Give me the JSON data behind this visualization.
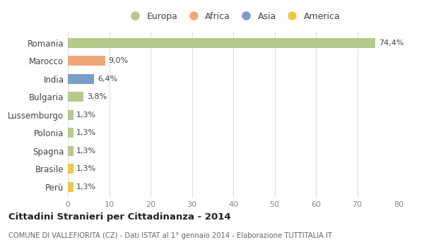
{
  "countries": [
    "Romania",
    "Marocco",
    "India",
    "Bulgaria",
    "Lussemburgo",
    "Polonia",
    "Spagna",
    "Brasile",
    "Perù"
  ],
  "values": [
    74.4,
    9.0,
    6.4,
    3.8,
    1.3,
    1.3,
    1.3,
    1.3,
    1.3
  ],
  "labels": [
    "74,4%",
    "9,0%",
    "6,4%",
    "3,8%",
    "1,3%",
    "1,3%",
    "1,3%",
    "1,3%",
    "1,3%"
  ],
  "colors": [
    "#b5c98a",
    "#f0a878",
    "#7b9ec8",
    "#b5c98a",
    "#b5c98a",
    "#b5c98a",
    "#b5c98a",
    "#f0c844",
    "#f0c844"
  ],
  "legend_labels": [
    "Europa",
    "Africa",
    "Asia",
    "America"
  ],
  "legend_colors": [
    "#b5c98a",
    "#f0a878",
    "#7b9ec8",
    "#f0c844"
  ],
  "title": "Cittadini Stranieri per Cittadinanza - 2014",
  "subtitle": "COMUNE DI VALLEFIORITA (CZ) - Dati ISTAT al 1° gennaio 2014 - Elaborazione TUTTITALIA.IT",
  "xlim": [
    0,
    80
  ],
  "xticks": [
    0,
    10,
    20,
    30,
    40,
    50,
    60,
    70,
    80
  ],
  "background_color": "#ffffff",
  "grid_color": "#dddddd",
  "bar_height": 0.55
}
